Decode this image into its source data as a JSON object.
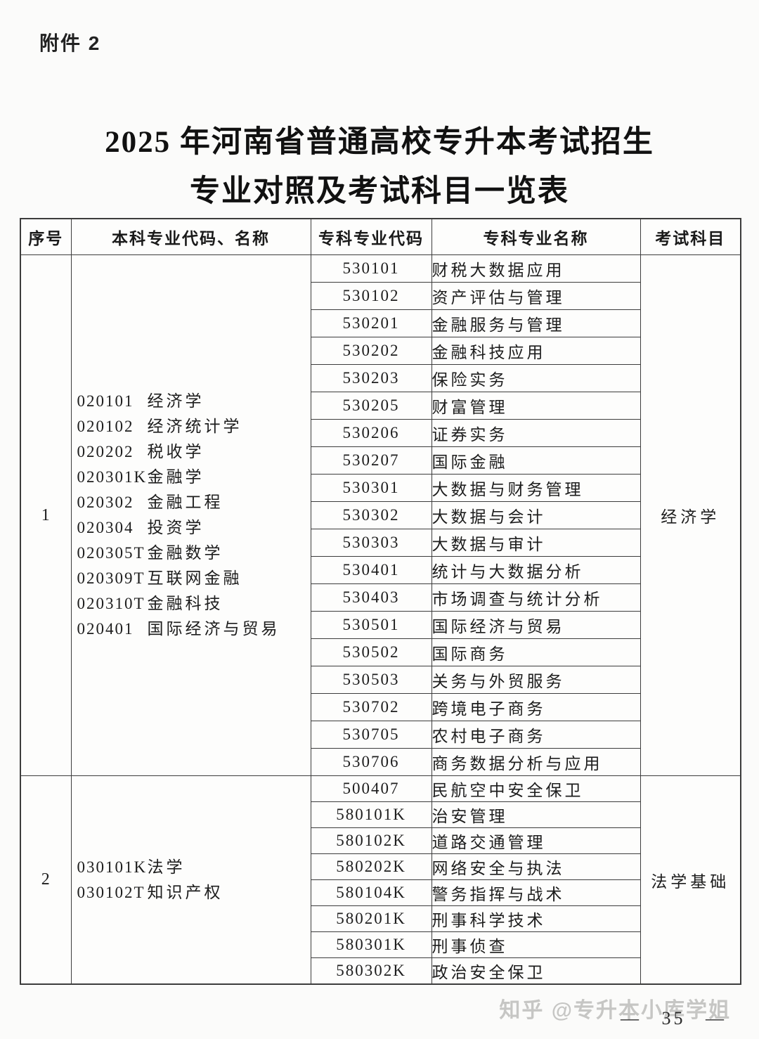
{
  "page": {
    "attachment_label": "附件 2",
    "title_line1": "2025 年河南省普通高校专升本考试招生",
    "title_line2": "专业对照及考试科目一览表",
    "watermark": "知乎 @专升本小库学姐",
    "page_number": "— 35 —"
  },
  "table": {
    "headers": [
      "序号",
      "本科专业代码、名称",
      "专科专业代码",
      "专科专业名称",
      "考试科目"
    ],
    "groups": [
      {
        "seq": "1",
        "exam_subject": "经济学",
        "undergrad_majors": [
          {
            "code": "020101",
            "name": "经济学"
          },
          {
            "code": "020102",
            "name": "经济统计学"
          },
          {
            "code": "020202",
            "name": "税收学"
          },
          {
            "code": "020301K",
            "name": "金融学"
          },
          {
            "code": "020302",
            "name": "金融工程"
          },
          {
            "code": "020304",
            "name": "投资学"
          },
          {
            "code": "020305T",
            "name": "金融数学"
          },
          {
            "code": "020309T",
            "name": "互联网金融"
          },
          {
            "code": "020310T",
            "name": "金融科技"
          },
          {
            "code": "020401",
            "name": "国际经济与贸易"
          }
        ],
        "college_majors": [
          {
            "code": "530101",
            "name": "财税大数据应用"
          },
          {
            "code": "530102",
            "name": "资产评估与管理"
          },
          {
            "code": "530201",
            "name": "金融服务与管理"
          },
          {
            "code": "530202",
            "name": "金融科技应用"
          },
          {
            "code": "530203",
            "name": "保险实务"
          },
          {
            "code": "530205",
            "name": "财富管理"
          },
          {
            "code": "530206",
            "name": "证券实务"
          },
          {
            "code": "530207",
            "name": "国际金融"
          },
          {
            "code": "530301",
            "name": "大数据与财务管理"
          },
          {
            "code": "530302",
            "name": "大数据与会计"
          },
          {
            "code": "530303",
            "name": "大数据与审计"
          },
          {
            "code": "530401",
            "name": "统计与大数据分析"
          },
          {
            "code": "530403",
            "name": "市场调查与统计分析"
          },
          {
            "code": "530501",
            "name": "国际经济与贸易"
          },
          {
            "code": "530502",
            "name": "国际商务"
          },
          {
            "code": "530503",
            "name": "关务与外贸服务"
          },
          {
            "code": "530702",
            "name": "跨境电子商务"
          },
          {
            "code": "530705",
            "name": "农村电子商务"
          },
          {
            "code": "530706",
            "name": "商务数据分析与应用"
          }
        ]
      },
      {
        "seq": "2",
        "exam_subject": "法学基础",
        "undergrad_majors": [
          {
            "code": "030101K",
            "name": "法学"
          },
          {
            "code": "030102T",
            "name": "知识产权"
          }
        ],
        "college_majors": [
          {
            "code": "500407",
            "name": "民航空中安全保卫"
          },
          {
            "code": "580101K",
            "name": "治安管理"
          },
          {
            "code": "580102K",
            "name": "道路交通管理"
          },
          {
            "code": "580202K",
            "name": "网络安全与执法"
          },
          {
            "code": "580104K",
            "name": "警务指挥与战术"
          },
          {
            "code": "580201K",
            "name": "刑事科学技术"
          },
          {
            "code": "580301K",
            "name": "刑事侦查"
          },
          {
            "code": "580302K",
            "name": "政治安全保卫"
          }
        ]
      }
    ]
  }
}
